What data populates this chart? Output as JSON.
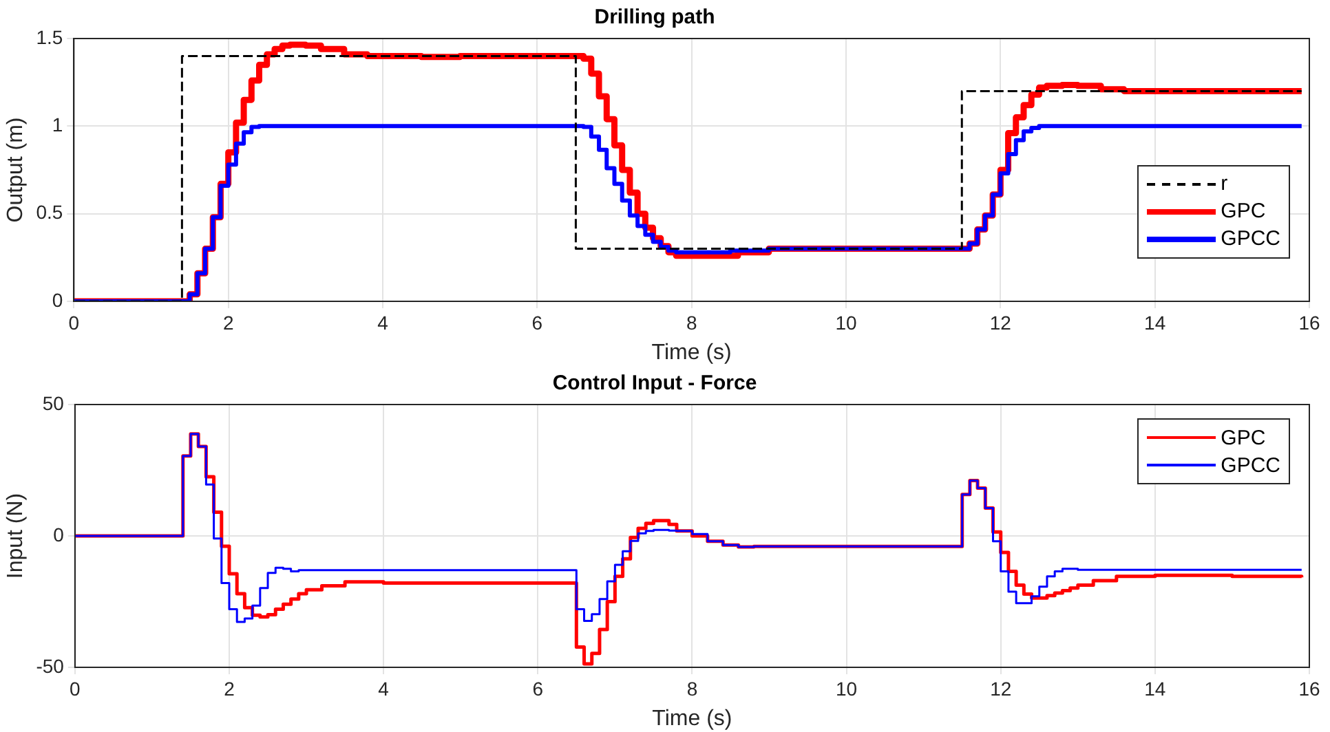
{
  "chart_data": [
    {
      "type": "step",
      "title": "Drilling path",
      "xlabel": "Time (s)",
      "ylabel": "Output (m)",
      "xlim": [
        0,
        16
      ],
      "xticks": [
        0,
        2,
        4,
        6,
        8,
        10,
        12,
        14,
        16
      ],
      "ylim": [
        0,
        1.5
      ],
      "yticks": [
        0,
        0.5,
        1,
        1.5
      ],
      "grid": true,
      "legend": "right",
      "series": [
        {
          "name": "r",
          "color": "#000000",
          "line_style": "dashed",
          "x": [
            0,
            1.4,
            6.5,
            11.5,
            15.9
          ],
          "values": [
            0,
            1.4,
            0.3,
            1.2,
            1.2
          ]
        },
        {
          "name": "GPC",
          "color": "#ff0000",
          "line_style": "solid",
          "x": [
            0,
            1.5,
            1.6,
            1.7,
            1.8,
            1.9,
            2.0,
            2.1,
            2.2,
            2.3,
            2.4,
            2.5,
            2.6,
            2.7,
            2.8,
            3.0,
            3.2,
            3.5,
            3.8,
            4.5,
            5.0,
            6.6,
            6.7,
            6.8,
            6.9,
            7.0,
            7.1,
            7.2,
            7.3,
            7.4,
            7.5,
            7.6,
            7.7,
            7.8,
            8.2,
            8.6,
            9.0,
            11.6,
            11.7,
            11.8,
            11.9,
            12.0,
            12.1,
            12.2,
            12.3,
            12.4,
            12.5,
            12.6,
            12.8,
            13.0,
            13.3,
            13.6,
            15.9
          ],
          "values": [
            0,
            0.04,
            0.16,
            0.3,
            0.48,
            0.67,
            0.85,
            1.02,
            1.15,
            1.26,
            1.35,
            1.41,
            1.44,
            1.46,
            1.465,
            1.46,
            1.44,
            1.41,
            1.4,
            1.395,
            1.4,
            1.385,
            1.3,
            1.17,
            1.04,
            0.89,
            0.75,
            0.62,
            0.5,
            0.42,
            0.36,
            0.315,
            0.28,
            0.26,
            0.26,
            0.28,
            0.3,
            0.33,
            0.41,
            0.49,
            0.61,
            0.75,
            0.96,
            1.05,
            1.12,
            1.18,
            1.22,
            1.23,
            1.235,
            1.23,
            1.21,
            1.2,
            1.2
          ]
        },
        {
          "name": "GPCC",
          "color": "#0000ff",
          "line_style": "solid",
          "x": [
            0,
            1.5,
            1.6,
            1.7,
            1.8,
            1.9,
            2.0,
            2.1,
            2.2,
            2.3,
            2.4,
            6.6,
            6.7,
            6.8,
            6.9,
            7.0,
            7.1,
            7.2,
            7.3,
            7.4,
            7.5,
            7.6,
            7.7,
            7.8,
            8.5,
            9.0,
            11.6,
            11.7,
            11.8,
            11.9,
            12.0,
            12.1,
            12.2,
            12.3,
            12.4,
            12.5,
            15.9
          ],
          "values": [
            0,
            0.04,
            0.16,
            0.3,
            0.48,
            0.66,
            0.78,
            0.9,
            0.965,
            0.995,
            1.0,
            0.995,
            0.94,
            0.865,
            0.76,
            0.67,
            0.575,
            0.49,
            0.43,
            0.38,
            0.34,
            0.31,
            0.29,
            0.28,
            0.29,
            0.3,
            0.33,
            0.41,
            0.49,
            0.61,
            0.73,
            0.84,
            0.92,
            0.97,
            0.99,
            1.0,
            1.0
          ]
        }
      ]
    },
    {
      "type": "step",
      "title": "Control Input - Force",
      "xlabel": "Time (s)",
      "ylabel": "Input (N)",
      "xlim": [
        0,
        16
      ],
      "xticks": [
        0,
        2,
        4,
        6,
        8,
        10,
        12,
        14,
        16
      ],
      "ylim": [
        -50,
        50
      ],
      "yticks": [
        -50,
        0,
        50
      ],
      "grid": true,
      "legend": "top right",
      "series": [
        {
          "name": "GPC",
          "color": "#ff0000",
          "line_style": "solid",
          "x": [
            0,
            1.4,
            1.5,
            1.6,
            1.7,
            1.8,
            1.9,
            2.0,
            2.1,
            2.2,
            2.3,
            2.4,
            2.5,
            2.6,
            2.7,
            2.8,
            2.9,
            3.0,
            3.2,
            3.5,
            4.0,
            6.5,
            6.6,
            6.7,
            6.8,
            6.9,
            7.0,
            7.1,
            7.2,
            7.3,
            7.4,
            7.5,
            7.7,
            7.8,
            8.0,
            8.2,
            8.4,
            8.6,
            8.8,
            9.0,
            11.5,
            11.6,
            11.7,
            11.8,
            11.9,
            12.0,
            12.1,
            12.2,
            12.3,
            12.4,
            12.6,
            12.7,
            12.8,
            12.9,
            13.0,
            13.2,
            13.5,
            14.0,
            15.0,
            15.9
          ],
          "values": [
            0,
            30.4,
            38.8,
            34,
            22.5,
            9,
            -3.9,
            -14.4,
            -22,
            -27.3,
            -30.2,
            -30.8,
            -30,
            -27.9,
            -26,
            -24,
            -22,
            -20.5,
            -19,
            -17.5,
            -17.9,
            -42.3,
            -48.7,
            -44.7,
            -35.6,
            -25,
            -15.4,
            -8.7,
            -0.6,
            2.9,
            4.8,
            5.8,
            4.4,
            1.9,
            0,
            -2,
            -3.5,
            -4.2,
            -4,
            -4,
            15.8,
            21.1,
            18.2,
            10.6,
            1.5,
            -6.3,
            -13.5,
            -18.7,
            -22.1,
            -23.6,
            -22.7,
            -21.7,
            -20.8,
            -19.8,
            -18.7,
            -17,
            -15.4,
            -15,
            -15.4,
            -15.8
          ]
        },
        {
          "name": "GPCC",
          "color": "#0000ff",
          "line_style": "solid",
          "x": [
            0,
            1.4,
            1.5,
            1.6,
            1.7,
            1.8,
            1.9,
            2.0,
            2.1,
            2.2,
            2.3,
            2.4,
            2.5,
            2.6,
            2.7,
            2.8,
            2.9,
            6.5,
            6.6,
            6.7,
            6.8,
            6.9,
            7.0,
            7.1,
            7.2,
            7.3,
            7.4,
            7.5,
            7.7,
            7.8,
            8.0,
            8.2,
            8.4,
            8.6,
            8.8,
            11.5,
            11.6,
            11.7,
            11.8,
            11.9,
            12.0,
            12.1,
            12.2,
            12.4,
            12.5,
            12.6,
            12.7,
            12.8,
            13.0,
            15.9
          ],
          "values": [
            0,
            30.4,
            38.8,
            34,
            19.6,
            -1,
            -17.9,
            -27.9,
            -32.7,
            -31.4,
            -26.5,
            -19.8,
            -14.1,
            -12.1,
            -12.5,
            -13.5,
            -13,
            -27.9,
            -32.3,
            -29.8,
            -24,
            -17.3,
            -11,
            -5.8,
            -1.9,
            1,
            1.9,
            2.3,
            2,
            1.9,
            0.7,
            -2,
            -3.5,
            -4.2,
            -4,
            15.8,
            21.1,
            18.2,
            10.6,
            -2,
            -13.5,
            -21.2,
            -25.6,
            -23,
            -19.3,
            -15.4,
            -13.5,
            -12.5,
            -12.9,
            -12.9
          ]
        }
      ]
    }
  ]
}
